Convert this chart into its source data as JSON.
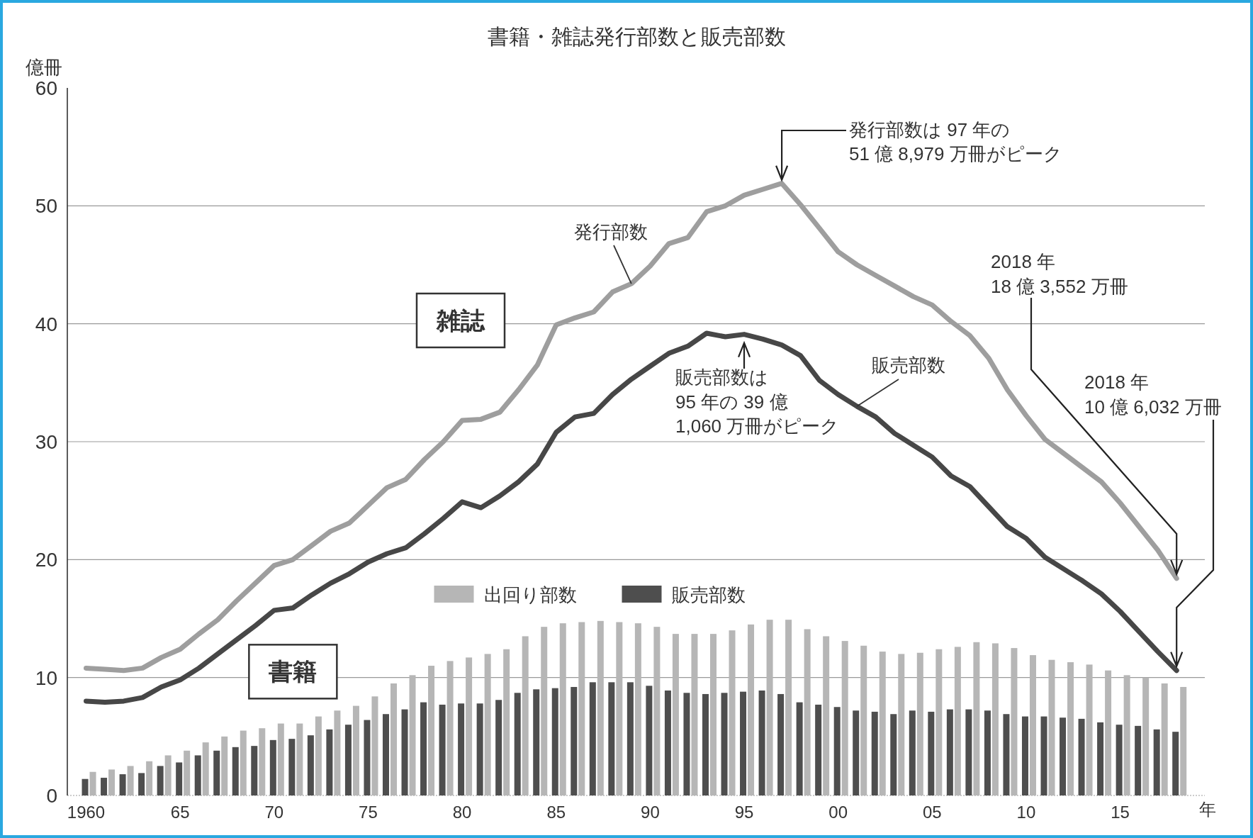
{
  "chart_data": {
    "type": "bar",
    "title": "書籍・雑誌発行部数と販売部数",
    "ylabel": "億冊",
    "xlabel": "年",
    "x": [
      1960,
      1961,
      1962,
      1963,
      1964,
      1965,
      1966,
      1967,
      1968,
      1969,
      1970,
      1971,
      1972,
      1973,
      1974,
      1975,
      1976,
      1977,
      1978,
      1979,
      1980,
      1981,
      1982,
      1983,
      1984,
      1985,
      1986,
      1987,
      1988,
      1989,
      1990,
      1991,
      1992,
      1993,
      1994,
      1995,
      1996,
      1997,
      1998,
      1999,
      2000,
      2001,
      2002,
      2003,
      2004,
      2005,
      2006,
      2007,
      2008,
      2009,
      2010,
      2011,
      2012,
      2013,
      2014,
      2015,
      2016,
      2017,
      2018
    ],
    "series": [
      {
        "name": "出回り部数",
        "color": "#b6b6b6",
        "values": [
          2.0,
          2.2,
          2.5,
          2.9,
          3.4,
          3.8,
          4.5,
          5.0,
          5.5,
          5.7,
          6.1,
          6.1,
          6.7,
          7.2,
          7.6,
          8.4,
          9.5,
          10.2,
          11.0,
          11.4,
          11.7,
          12.0,
          12.4,
          13.5,
          14.3,
          14.6,
          14.7,
          14.8,
          14.7,
          14.6,
          14.3,
          13.7,
          13.7,
          13.7,
          14.0,
          14.5,
          14.9,
          14.9,
          14.1,
          13.5,
          13.1,
          12.7,
          12.2,
          12.0,
          12.1,
          12.4,
          12.6,
          13.0,
          12.9,
          12.5,
          11.9,
          11.5,
          11.3,
          11.1,
          10.6,
          10.2,
          10.0,
          9.5,
          9.2
        ]
      },
      {
        "name": "販売部数",
        "color": "#4e4e4e",
        "values": [
          1.4,
          1.5,
          1.8,
          1.9,
          2.5,
          2.8,
          3.4,
          3.8,
          4.1,
          4.2,
          4.7,
          4.8,
          5.1,
          5.6,
          6.0,
          6.4,
          6.9,
          7.3,
          7.9,
          7.7,
          7.8,
          7.8,
          8.1,
          8.7,
          9.0,
          9.1,
          9.2,
          9.6,
          9.6,
          9.6,
          9.3,
          8.9,
          8.7,
          8.6,
          8.7,
          8.8,
          8.9,
          8.6,
          7.9,
          7.7,
          7.5,
          7.2,
          7.1,
          6.9,
          7.2,
          7.1,
          7.3,
          7.3,
          7.2,
          6.9,
          6.7,
          6.7,
          6.6,
          6.5,
          6.2,
          6.0,
          5.9,
          5.6,
          5.4
        ]
      },
      {
        "name": "発行部数",
        "type": "line",
        "color": "#9e9e9e",
        "values": [
          10.8,
          10.7,
          10.6,
          10.8,
          11.7,
          12.4,
          13.7,
          14.9,
          16.5,
          18.0,
          19.5,
          20.0,
          21.2,
          22.4,
          23.1,
          24.6,
          26.1,
          26.8,
          28.5,
          30.0,
          31.8,
          31.9,
          32.5,
          34.4,
          36.5,
          39.9,
          40.5,
          41.0,
          42.7,
          43.4,
          44.9,
          46.8,
          47.3,
          49.5,
          50.0,
          50.9,
          51.4,
          51.9,
          50.1,
          48.1,
          46.1,
          45.0,
          44.1,
          43.2,
          42.3,
          41.6,
          40.2,
          39.0,
          37.1,
          34.4,
          32.2,
          30.2,
          29.0,
          27.8,
          26.6,
          24.8,
          22.8,
          20.8,
          18.4
        ]
      },
      {
        "name": "販売部数",
        "type": "line",
        "color": "#474747",
        "values": [
          8.0,
          7.9,
          8.0,
          8.3,
          9.2,
          9.8,
          10.8,
          12.0,
          13.2,
          14.4,
          15.7,
          15.9,
          17.0,
          18.0,
          18.8,
          19.8,
          20.5,
          21.0,
          22.2,
          23.5,
          24.9,
          24.4,
          25.4,
          26.6,
          28.1,
          30.8,
          32.1,
          32.4,
          34.0,
          35.3,
          36.4,
          37.5,
          38.1,
          39.2,
          38.9,
          39.1,
          38.7,
          38.2,
          37.3,
          35.2,
          34.0,
          33.0,
          32.1,
          30.7,
          29.7,
          28.7,
          27.1,
          26.2,
          24.5,
          22.8,
          21.8,
          20.2,
          19.2,
          18.2,
          17.1,
          15.6,
          13.9,
          12.2,
          10.6
        ]
      }
    ],
    "xlim": [
      1959,
      2019.5
    ],
    "ylim": [
      0,
      60
    ],
    "xticks": [
      1960,
      {
        "value": 1965,
        "label": "65"
      },
      {
        "value": 1970,
        "label": "70"
      },
      {
        "value": 1975,
        "label": "75"
      },
      {
        "value": 1980,
        "label": "80"
      },
      {
        "value": 1985,
        "label": "85"
      },
      {
        "value": 1990,
        "label": "90"
      },
      {
        "value": 1995,
        "label": "95"
      },
      {
        "value": 2000,
        "label": "00"
      },
      {
        "value": 2005,
        "label": "05"
      },
      {
        "value": 2010,
        "label": "10"
      },
      {
        "value": 2015,
        "label": "15"
      }
    ],
    "yticks": [
      0,
      10,
      20,
      30,
      40,
      50,
      60
    ],
    "grid": "y",
    "legend": "center",
    "annotations": [
      "雑誌",
      "書籍",
      {
        "text": "発行部数は 97 年の\n51 億 8,979 万冊がピーク",
        "x": 1997,
        "y": 51.9
      },
      {
        "text": "販売部数は\n95 年の 39 億\n1,060 万冊がピーク",
        "x": 1995,
        "y": 39.1
      },
      {
        "text": "2018 年\n18 億 3,552 万冊",
        "x": 2018,
        "y": 18.4
      },
      {
        "text": "2018 年\n10 億 6,032 万冊",
        "x": 2018,
        "y": 10.6
      }
    ]
  }
}
